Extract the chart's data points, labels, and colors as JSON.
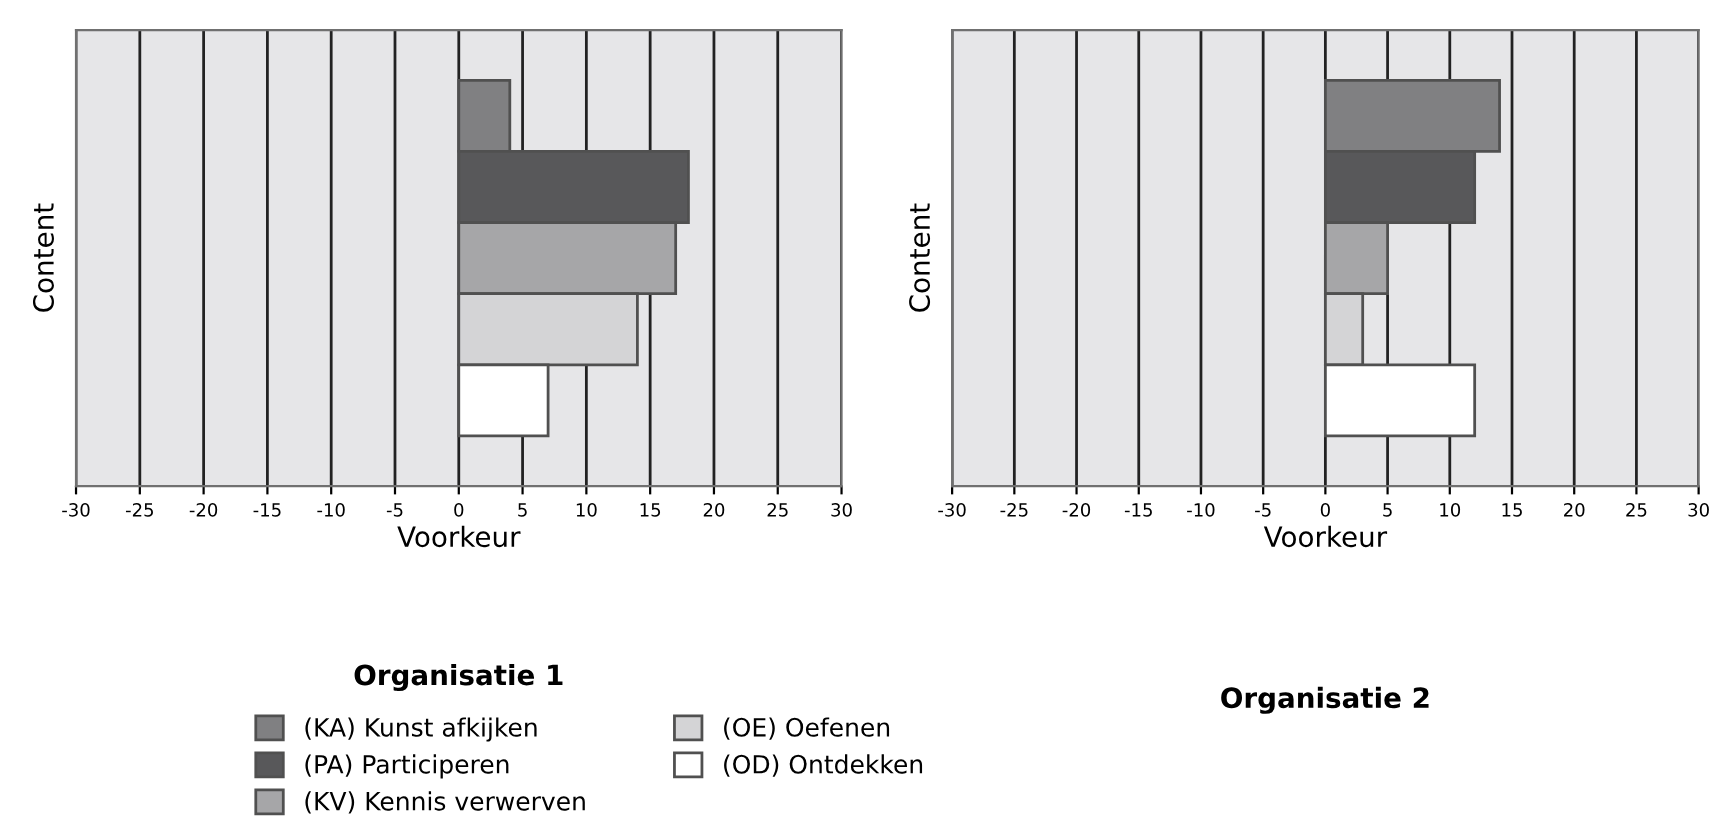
{
  "chart_data": [
    {
      "type": "bar",
      "orientation": "horizontal",
      "title": "Organisatie 1",
      "xlabel": "Voorkeur",
      "ylabel": "Content",
      "categories": [
        null
      ],
      "series": [
        {
          "name": "(KA) Kunst afkijken",
          "color": "#808082",
          "values": [
            4
          ]
        },
        {
          "name": "(PA) Participeren",
          "color": "#58585a",
          "values": [
            18
          ]
        },
        {
          "name": "(KV) Kennis verwerven",
          "color": "#a6a6a8",
          "values": [
            17
          ]
        },
        {
          "name": "(OE) Oefenen",
          "color": "#d4d4d6",
          "values": [
            14
          ]
        },
        {
          "name": "(OD) Ontdekken",
          "color": "#ffffff",
          "values": [
            7
          ]
        }
      ],
      "xlim": [
        -30,
        30
      ],
      "xticks": [
        -30,
        -25,
        -20,
        -15,
        -10,
        -5,
        0,
        5,
        10,
        15,
        20,
        25,
        30
      ],
      "grid": "x",
      "legend": "bottom"
    },
    {
      "type": "bar",
      "orientation": "horizontal",
      "title": "Organisatie 2",
      "xlabel": "Voorkeur",
      "ylabel": "Content",
      "categories": [
        null
      ],
      "series": [
        {
          "color": "#808082",
          "values": [
            14
          ]
        },
        {
          "color": "#58585a",
          "values": [
            12
          ]
        },
        {
          "color": "#a6a6a8",
          "values": [
            5
          ]
        },
        {
          "color": "#d4d4d6",
          "values": [
            3
          ]
        },
        {
          "color": "#ffffff",
          "values": [
            12
          ]
        }
      ],
      "xlim": [
        -30,
        30
      ],
      "xticks": [
        -30,
        -25,
        -20,
        -15,
        -10,
        -5,
        0,
        5,
        10,
        15,
        20,
        25,
        30
      ],
      "grid": "x"
    }
  ]
}
